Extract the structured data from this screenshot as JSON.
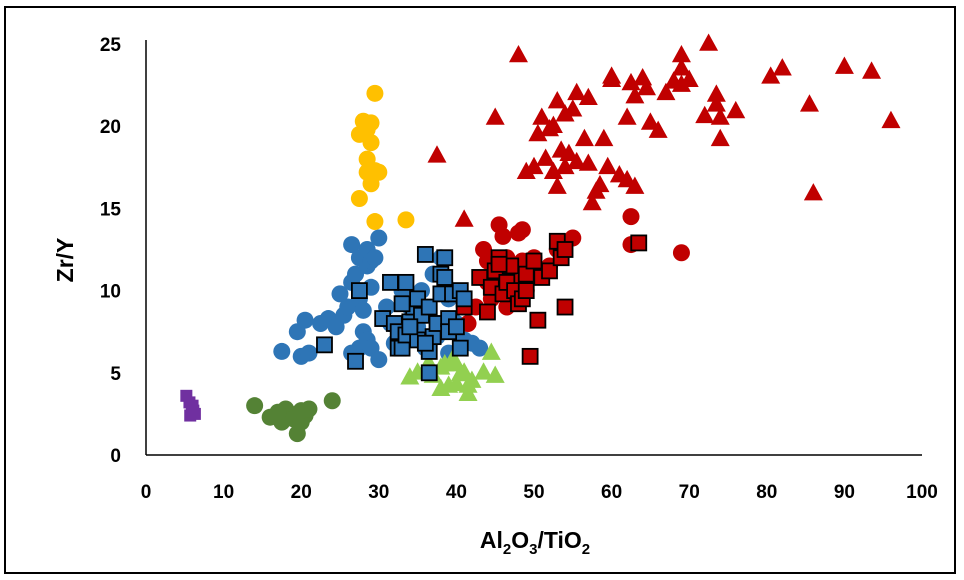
{
  "chart_data": {
    "type": "scatter",
    "xlabel": "Al2O3/TiO2",
    "ylabel": "Zr/Y",
    "xlim": [
      0,
      100
    ],
    "ylim": [
      0,
      25
    ],
    "x_ticks": [
      0,
      10,
      20,
      30,
      40,
      50,
      60,
      70,
      80,
      90,
      100
    ],
    "y_ticks": [
      0,
      5,
      10,
      15,
      20,
      25
    ],
    "grid": false,
    "legend": "none",
    "series": [
      {
        "marker": "square",
        "color": "#7030a0",
        "outline": false,
        "points": [
          [
            5.2,
            3.6
          ],
          [
            5.6,
            3.2
          ],
          [
            5.9,
            2.9
          ],
          [
            6.1,
            2.7
          ],
          [
            6.3,
            2.5
          ],
          [
            5.7,
            2.4
          ],
          [
            6.0,
            3.0
          ]
        ]
      },
      {
        "marker": "circle",
        "color": "#548235",
        "points": [
          [
            14,
            3.0
          ],
          [
            16,
            2.3
          ],
          [
            17.5,
            2.0
          ],
          [
            18,
            2.8
          ],
          [
            18.5,
            2.4
          ],
          [
            19,
            2.2
          ],
          [
            19.5,
            2.5
          ],
          [
            19.5,
            1.3
          ],
          [
            20,
            2.0
          ],
          [
            20.5,
            2.4
          ],
          [
            21,
            2.8
          ],
          [
            24,
            3.3
          ],
          [
            17,
            2.6
          ],
          [
            20,
            2.7
          ]
        ]
      },
      {
        "marker": "circle",
        "color": "#2e75b6",
        "points": [
          [
            17.5,
            6.3
          ],
          [
            19.5,
            7.5
          ],
          [
            20,
            6.0
          ],
          [
            20.5,
            8.2
          ],
          [
            21,
            6.2
          ],
          [
            22.5,
            8.0
          ],
          [
            23.5,
            8.3
          ],
          [
            24.5,
            7.8
          ],
          [
            25,
            9.8
          ],
          [
            25.5,
            8.5
          ],
          [
            26,
            9.0
          ],
          [
            26.5,
            12.8
          ],
          [
            26.5,
            10.5
          ],
          [
            27,
            11.0
          ],
          [
            27.5,
            9.5
          ],
          [
            27.5,
            12.0
          ],
          [
            28,
            8.8
          ],
          [
            28.5,
            11.5
          ],
          [
            28.5,
            12.5
          ],
          [
            29,
            10.2
          ],
          [
            29,
            11.8
          ],
          [
            29.5,
            12.0
          ],
          [
            30,
            13.2
          ],
          [
            28,
            7.5
          ],
          [
            27.5,
            6.5
          ],
          [
            28.5,
            7.0
          ],
          [
            29,
            6.5
          ],
          [
            30,
            5.8
          ],
          [
            26.5,
            6.2
          ],
          [
            31,
            9.0
          ],
          [
            31.5,
            8.0
          ],
          [
            32,
            6.8
          ],
          [
            33,
            10.0
          ],
          [
            34,
            7.2
          ],
          [
            35,
            7.8
          ],
          [
            36,
            8.5
          ],
          [
            37,
            11.0
          ],
          [
            38,
            12.0
          ],
          [
            38.5,
            10.5
          ],
          [
            39,
            9.5
          ],
          [
            40,
            8.0
          ],
          [
            41,
            7.0
          ],
          [
            42,
            6.8
          ],
          [
            43,
            6.5
          ],
          [
            36,
            6.5
          ],
          [
            39,
            6.2
          ],
          [
            41,
            9.0
          ],
          [
            35.5,
            10.0
          ],
          [
            34,
            9.0
          ],
          [
            37.5,
            7.2
          ]
        ]
      },
      {
        "marker": "circle",
        "color": "#ffc000",
        "points": [
          [
            28,
            20.3
          ],
          [
            28.5,
            19.8
          ],
          [
            29,
            20.2
          ],
          [
            27.5,
            19.5
          ],
          [
            29,
            19.0
          ],
          [
            29.5,
            22.0
          ],
          [
            28.5,
            18.0
          ],
          [
            28.5,
            17.2
          ],
          [
            29.5,
            17.3
          ],
          [
            30,
            17.2
          ],
          [
            29,
            16.5
          ],
          [
            27.5,
            15.6
          ],
          [
            29.5,
            14.2
          ],
          [
            33.5,
            14.3
          ]
        ]
      },
      {
        "marker": "triangle",
        "color": "#92d050",
        "points": [
          [
            34,
            4.7
          ],
          [
            35,
            5.0
          ],
          [
            36,
            5.2
          ],
          [
            37,
            4.8
          ],
          [
            38,
            4.0
          ],
          [
            38.5,
            5.5
          ],
          [
            39,
            4.2
          ],
          [
            39.5,
            5.8
          ],
          [
            40,
            5.5
          ],
          [
            40.5,
            4.9
          ],
          [
            41,
            5.0
          ],
          [
            41.5,
            4.2
          ],
          [
            41.5,
            3.7
          ],
          [
            42,
            4.5
          ],
          [
            43.5,
            5.0
          ],
          [
            44.5,
            6.2
          ],
          [
            45,
            4.8
          ],
          [
            38,
            5.3
          ],
          [
            36.5,
            5.5
          ],
          [
            40,
            4.3
          ]
        ]
      },
      {
        "marker": "circle",
        "color": "#c00000",
        "points": [
          [
            41.5,
            8.0
          ],
          [
            42.5,
            9.0
          ],
          [
            43.5,
            12.5
          ],
          [
            44,
            10.5
          ],
          [
            44.5,
            9.5
          ],
          [
            45,
            11.0
          ],
          [
            45.5,
            14.0
          ],
          [
            46,
            13.3
          ],
          [
            46.5,
            12.0
          ],
          [
            47,
            11.5
          ],
          [
            47.5,
            10.5
          ],
          [
            48,
            13.5
          ],
          [
            48.5,
            13.7
          ],
          [
            49,
            10.0
          ],
          [
            50,
            12.0
          ],
          [
            51,
            11.2
          ],
          [
            52,
            11.5
          ],
          [
            53,
            12.5
          ],
          [
            55,
            13.2
          ],
          [
            62.5,
            14.5
          ],
          [
            62.5,
            12.8
          ],
          [
            69,
            12.3
          ],
          [
            46.5,
            9.0
          ],
          [
            48.5,
            11.8
          ],
          [
            44,
            11.8
          ]
        ]
      },
      {
        "marker": "square",
        "color": "#c00000",
        "outline": true,
        "points": [
          [
            41,
            9.0
          ],
          [
            43,
            10.8
          ],
          [
            44,
            8.7
          ],
          [
            44.5,
            10.2
          ],
          [
            45,
            11.2
          ],
          [
            45.5,
            12.0
          ],
          [
            46,
            9.8
          ],
          [
            46.5,
            10.5
          ],
          [
            47,
            11.5
          ],
          [
            47.5,
            10.0
          ],
          [
            48,
            9.2
          ],
          [
            48.5,
            9.5
          ],
          [
            49,
            11.0
          ],
          [
            50,
            11.8
          ],
          [
            50.5,
            8.2
          ],
          [
            51,
            10.8
          ],
          [
            52,
            11.2
          ],
          [
            53,
            13.0
          ],
          [
            53.5,
            12.0
          ],
          [
            54,
            12.5
          ],
          [
            54,
            9.0
          ],
          [
            49.5,
            6.0
          ],
          [
            63.5,
            12.9
          ],
          [
            49,
            10.0
          ],
          [
            45.5,
            11.6
          ]
        ]
      },
      {
        "marker": "square",
        "color": "#2e75b6",
        "outline": true,
        "points": [
          [
            23,
            6.7
          ],
          [
            27,
            5.7
          ],
          [
            27.5,
            10.0
          ],
          [
            30.5,
            8.3
          ],
          [
            31.5,
            10.5
          ],
          [
            32,
            8.0
          ],
          [
            32.5,
            6.5
          ],
          [
            32.5,
            7.5
          ],
          [
            33,
            6.5
          ],
          [
            33.5,
            7.3
          ],
          [
            33.5,
            10.5
          ],
          [
            34,
            8.1
          ],
          [
            34.5,
            9.0
          ],
          [
            35,
            9.5
          ],
          [
            35,
            7.0
          ],
          [
            35.5,
            8.5
          ],
          [
            36,
            12.2
          ],
          [
            36.5,
            9.0
          ],
          [
            36.5,
            6.3
          ],
          [
            36.5,
            5.0
          ],
          [
            37,
            7.2
          ],
          [
            37.5,
            8.0
          ],
          [
            38,
            11.0
          ],
          [
            38,
            9.8
          ],
          [
            38.5,
            10.8
          ],
          [
            38.5,
            12.0
          ],
          [
            39,
            8.3
          ],
          [
            39,
            7.5
          ],
          [
            39.5,
            9.8
          ],
          [
            40,
            7.8
          ],
          [
            40.5,
            10.0
          ],
          [
            40.5,
            6.5
          ],
          [
            41,
            9.5
          ],
          [
            33,
            9.2
          ],
          [
            34,
            7.8
          ],
          [
            36,
            6.8
          ]
        ]
      },
      {
        "marker": "triangle",
        "color": "#c00000",
        "points": [
          [
            37.5,
            18.2
          ],
          [
            41,
            14.3
          ],
          [
            45,
            20.5
          ],
          [
            48,
            24.3
          ],
          [
            49,
            17.2
          ],
          [
            50,
            17.5
          ],
          [
            50.5,
            19.5
          ],
          [
            51,
            20.5
          ],
          [
            51.5,
            18.0
          ],
          [
            52,
            19.8
          ],
          [
            52.5,
            17.2
          ],
          [
            52.5,
            20.0
          ],
          [
            53,
            21.5
          ],
          [
            53,
            16.3
          ],
          [
            53.5,
            18.5
          ],
          [
            54,
            20.7
          ],
          [
            54,
            17.5
          ],
          [
            54.5,
            18.3
          ],
          [
            55,
            21.0
          ],
          [
            55.5,
            22.0
          ],
          [
            55.5,
            17.8
          ],
          [
            56.5,
            19.2
          ],
          [
            57,
            21.7
          ],
          [
            57,
            17.7
          ],
          [
            57.5,
            15.3
          ],
          [
            58,
            16.0
          ],
          [
            58.5,
            16.4
          ],
          [
            59,
            19.2
          ],
          [
            59.5,
            17.5
          ],
          [
            60,
            23.0
          ],
          [
            60,
            22.8
          ],
          [
            61,
            17.0
          ],
          [
            62,
            16.7
          ],
          [
            62,
            20.5
          ],
          [
            62.5,
            22.6
          ],
          [
            63,
            21.8
          ],
          [
            63,
            16.3
          ],
          [
            64,
            22.9
          ],
          [
            64.5,
            22.3
          ],
          [
            65,
            20.2
          ],
          [
            66,
            19.7
          ],
          [
            67,
            22.0
          ],
          [
            68,
            22.7
          ],
          [
            69,
            24.3
          ],
          [
            69,
            23.5
          ],
          [
            69,
            22.5
          ],
          [
            70,
            22.8
          ],
          [
            72,
            20.6
          ],
          [
            72.5,
            25.0
          ],
          [
            73.5,
            21.9
          ],
          [
            73.5,
            21.3
          ],
          [
            74,
            20.5
          ],
          [
            74,
            19.2
          ],
          [
            76,
            20.9
          ],
          [
            80.5,
            23.0
          ],
          [
            82,
            23.5
          ],
          [
            85.5,
            21.3
          ],
          [
            86,
            15.9
          ],
          [
            90,
            23.6
          ],
          [
            93.5,
            23.3
          ],
          [
            96,
            20.3
          ]
        ]
      }
    ]
  }
}
